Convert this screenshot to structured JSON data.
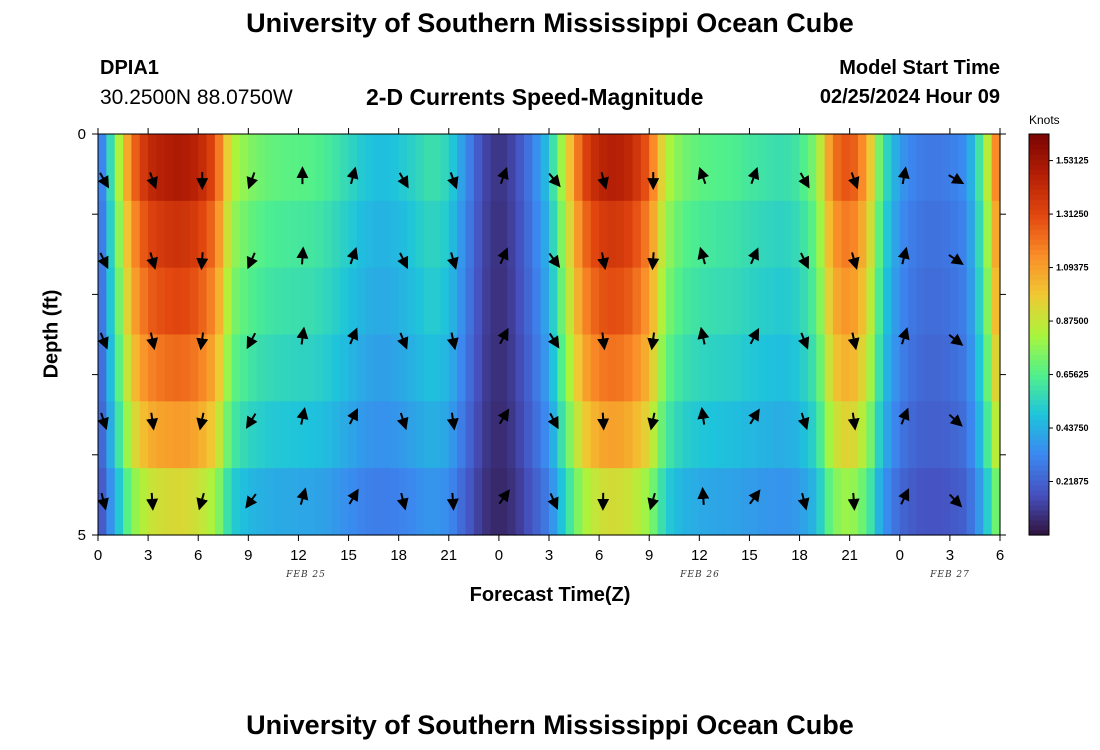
{
  "header": {
    "title": "University of Southern Mississippi Ocean Cube",
    "station": "DPIA1",
    "coordinates": "30.2500N  88.0750W",
    "subtitle": "2-D Currents Speed-Magnitude",
    "model_start_label": "Model Start Time",
    "model_start_value": "02/25/2024 Hour 09"
  },
  "footer": {
    "title": "University of Southern Mississippi Ocean Cube"
  },
  "chart_data": {
    "type": "heatmap",
    "title": "2-D Currents Speed-Magnitude",
    "xlabel": "Forecast Time(Z)",
    "ylabel": "Depth (ft)",
    "x_tick_labels": [
      "0",
      "3",
      "6",
      "9",
      "12",
      "15",
      "18",
      "21",
      "0",
      "3",
      "6",
      "9",
      "12",
      "15",
      "18",
      "21",
      "0",
      "3",
      "6"
    ],
    "x_range_hours": [
      0,
      54
    ],
    "y_tick_labels": [
      "0",
      "5"
    ],
    "ylim": [
      0,
      5
    ],
    "date_labels": [
      {
        "text": "FEB 25",
        "hour": 12
      },
      {
        "text": "FEB 26",
        "hour": 36
      },
      {
        "text": "FEB 27",
        "hour": 51
      }
    ],
    "colorbar": {
      "units": "Knots",
      "min": 0.0,
      "max": 1.64,
      "tick_labels": [
        "1.53125",
        "1.31250",
        "1.09375",
        "0.87500",
        "0.65625",
        "0.43750",
        "0.21875"
      ],
      "tick_values": [
        1.53125,
        1.3125,
        1.09375,
        0.875,
        0.65625,
        0.4375,
        0.21875
      ]
    },
    "depth_layers": [
      0.5,
      1.5,
      2.5,
      3.5,
      4.5
    ],
    "speed_profile_hours": [
      0,
      1,
      2,
      3,
      4,
      5,
      6,
      7,
      8,
      9,
      10,
      11,
      12,
      13,
      14,
      15,
      16,
      17,
      18,
      19,
      20,
      21,
      22,
      23,
      24,
      25,
      26,
      27,
      28,
      29,
      30,
      31,
      32,
      33,
      34,
      35,
      36,
      37,
      38,
      39,
      40,
      41,
      42,
      43,
      44,
      45,
      46,
      47,
      48,
      49,
      50,
      51,
      52,
      53,
      54
    ],
    "speed_profile_knots": [
      0.2,
      0.7,
      1.2,
      1.42,
      1.48,
      1.5,
      1.45,
      1.3,
      0.85,
      0.75,
      0.7,
      0.68,
      0.67,
      0.66,
      0.62,
      0.56,
      0.5,
      0.48,
      0.5,
      0.55,
      0.6,
      0.55,
      0.35,
      0.15,
      0.08,
      0.15,
      0.3,
      0.5,
      0.9,
      1.3,
      1.45,
      1.48,
      1.42,
      1.25,
      0.85,
      0.72,
      0.68,
      0.66,
      0.65,
      0.62,
      0.6,
      0.58,
      0.62,
      0.75,
      1.2,
      1.3,
      1.1,
      0.6,
      0.38,
      0.3,
      0.28,
      0.3,
      0.35,
      0.7,
      1.3
    ],
    "depth_factors": [
      1.0,
      0.93,
      0.88,
      0.82,
      0.74,
      0.62
    ],
    "arrows": {
      "hours": [
        0,
        3,
        6,
        9,
        12,
        15,
        18,
        21,
        24,
        27,
        30,
        33,
        36,
        39,
        42,
        45,
        48,
        51
      ],
      "angles_deg": [
        150,
        160,
        180,
        200,
        0,
        15,
        150,
        160,
        20,
        140,
        165,
        180,
        340,
        20,
        150,
        160,
        10,
        120
      ]
    }
  }
}
